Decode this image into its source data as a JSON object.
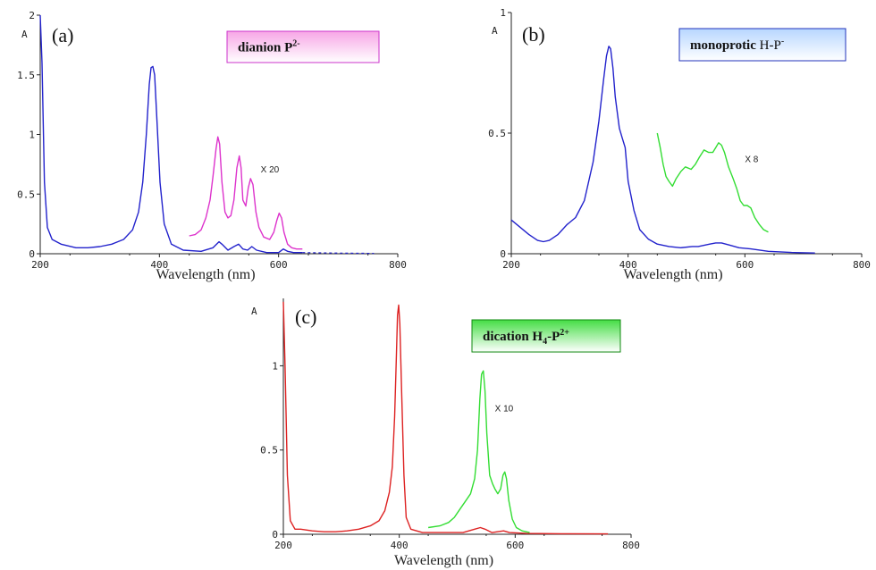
{
  "chart_data": [
    {
      "id": "a",
      "type": "line",
      "panel_label": "(a)",
      "ylabel": "A",
      "xlabel": "Wavelength (nm)",
      "xlim": [
        200,
        800
      ],
      "ylim": [
        0,
        2
      ],
      "xticks": [
        "200",
        "400",
        "600",
        "800"
      ],
      "xtick_values": [
        200,
        400,
        600,
        800
      ],
      "yticks": [
        "0",
        "0.5",
        "1",
        "1.5",
        "2"
      ],
      "ytick_values": [
        0,
        0.5,
        1,
        1.5,
        2
      ],
      "legend": {
        "bold": "dianion P",
        "sup": "2-",
        "rest": "",
        "rest_sup": "",
        "sub": "",
        "bold2": "",
        "bg": "#f7a6e6",
        "border": "#cc33cc"
      },
      "multiplier_label": "X 20",
      "multiplier_pos": {
        "x": 570,
        "y": 0.68
      },
      "series": [
        {
          "color": "#2222cc",
          "dashed_after": 640,
          "points": [
            [
              200,
              2.0
            ],
            [
              203,
              1.6
            ],
            [
              207,
              0.6
            ],
            [
              212,
              0.22
            ],
            [
              220,
              0.12
            ],
            [
              235,
              0.08
            ],
            [
              260,
              0.05
            ],
            [
              280,
              0.05
            ],
            [
              300,
              0.06
            ],
            [
              320,
              0.08
            ],
            [
              340,
              0.12
            ],
            [
              355,
              0.2
            ],
            [
              365,
              0.35
            ],
            [
              372,
              0.6
            ],
            [
              378,
              1.0
            ],
            [
              383,
              1.42
            ],
            [
              386,
              1.56
            ],
            [
              389,
              1.57
            ],
            [
              392,
              1.5
            ],
            [
              396,
              1.1
            ],
            [
              401,
              0.6
            ],
            [
              408,
              0.25
            ],
            [
              420,
              0.08
            ],
            [
              440,
              0.03
            ],
            [
              470,
              0.02
            ],
            [
              490,
              0.05
            ],
            [
              500,
              0.1
            ],
            [
              505,
              0.08
            ],
            [
              515,
              0.03
            ],
            [
              525,
              0.06
            ],
            [
              533,
              0.08
            ],
            [
              540,
              0.04
            ],
            [
              548,
              0.03
            ],
            [
              555,
              0.06
            ],
            [
              563,
              0.03
            ],
            [
              580,
              0.01
            ],
            [
              600,
              0.01
            ],
            [
              608,
              0.04
            ],
            [
              615,
              0.02
            ],
            [
              625,
              0.01
            ],
            [
              640,
              0.01
            ],
            [
              700,
              0.005
            ],
            [
              760,
              0.003
            ]
          ]
        },
        {
          "color": "#dd33cc",
          "points": [
            [
              450,
              0.15
            ],
            [
              460,
              0.16
            ],
            [
              470,
              0.2
            ],
            [
              478,
              0.3
            ],
            [
              485,
              0.45
            ],
            [
              490,
              0.65
            ],
            [
              495,
              0.88
            ],
            [
              498,
              0.98
            ],
            [
              501,
              0.92
            ],
            [
              505,
              0.6
            ],
            [
              510,
              0.35
            ],
            [
              515,
              0.3
            ],
            [
              520,
              0.32
            ],
            [
              525,
              0.45
            ],
            [
              530,
              0.72
            ],
            [
              534,
              0.82
            ],
            [
              537,
              0.72
            ],
            [
              540,
              0.45
            ],
            [
              545,
              0.4
            ],
            [
              549,
              0.55
            ],
            [
              553,
              0.63
            ],
            [
              557,
              0.58
            ],
            [
              562,
              0.35
            ],
            [
              567,
              0.22
            ],
            [
              575,
              0.14
            ],
            [
              585,
              0.12
            ],
            [
              592,
              0.18
            ],
            [
              597,
              0.28
            ],
            [
              601,
              0.34
            ],
            [
              605,
              0.3
            ],
            [
              609,
              0.18
            ],
            [
              615,
              0.08
            ],
            [
              622,
              0.05
            ],
            [
              630,
              0.04
            ],
            [
              640,
              0.04
            ]
          ]
        }
      ]
    },
    {
      "id": "b",
      "type": "line",
      "panel_label": "(b)",
      "ylabel": "A",
      "xlabel": "Wavelength (nm)",
      "xlim": [
        200,
        800
      ],
      "ylim": [
        0,
        1
      ],
      "xticks": [
        "200",
        "400",
        "600",
        "800"
      ],
      "xtick_values": [
        200,
        400,
        600,
        800
      ],
      "yticks": [
        "0",
        "0.5",
        "1"
      ],
      "ytick_values": [
        0,
        0.5,
        1
      ],
      "legend": {
        "bold": "monoprotic",
        "sup": "",
        "rest": " H-P",
        "rest_sup": "-",
        "sub": "",
        "bold2": "",
        "bg": "#b7d6ff",
        "border": "#2233bb"
      },
      "multiplier_label": "X 8",
      "multiplier_pos": {
        "x": 600,
        "y": 0.38
      },
      "series": [
        {
          "color": "#2222cc",
          "points": [
            [
              200,
              0.14
            ],
            [
              215,
              0.11
            ],
            [
              230,
              0.08
            ],
            [
              245,
              0.055
            ],
            [
              255,
              0.05
            ],
            [
              265,
              0.055
            ],
            [
              280,
              0.08
            ],
            [
              295,
              0.12
            ],
            [
              310,
              0.15
            ],
            [
              325,
              0.22
            ],
            [
              340,
              0.38
            ],
            [
              350,
              0.55
            ],
            [
              358,
              0.72
            ],
            [
              363,
              0.82
            ],
            [
              367,
              0.86
            ],
            [
              370,
              0.85
            ],
            [
              374,
              0.77
            ],
            [
              378,
              0.65
            ],
            [
              385,
              0.52
            ],
            [
              390,
              0.48
            ],
            [
              395,
              0.44
            ],
            [
              400,
              0.3
            ],
            [
              410,
              0.18
            ],
            [
              420,
              0.1
            ],
            [
              435,
              0.06
            ],
            [
              450,
              0.04
            ],
            [
              470,
              0.03
            ],
            [
              490,
              0.025
            ],
            [
              510,
              0.03
            ],
            [
              520,
              0.03
            ],
            [
              530,
              0.035
            ],
            [
              540,
              0.04
            ],
            [
              550,
              0.045
            ],
            [
              560,
              0.045
            ],
            [
              575,
              0.035
            ],
            [
              590,
              0.025
            ],
            [
              610,
              0.02
            ],
            [
              640,
              0.01
            ],
            [
              680,
              0.005
            ],
            [
              720,
              0.003
            ]
          ]
        },
        {
          "color": "#33dd33",
          "points": [
            [
              450,
              0.5
            ],
            [
              455,
              0.44
            ],
            [
              460,
              0.37
            ],
            [
              465,
              0.32
            ],
            [
              470,
              0.3
            ],
            [
              476,
              0.28
            ],
            [
              482,
              0.31
            ],
            [
              490,
              0.34
            ],
            [
              498,
              0.36
            ],
            [
              508,
              0.35
            ],
            [
              515,
              0.37
            ],
            [
              522,
              0.4
            ],
            [
              530,
              0.43
            ],
            [
              538,
              0.42
            ],
            [
              545,
              0.42
            ],
            [
              550,
              0.44
            ],
            [
              555,
              0.46
            ],
            [
              560,
              0.45
            ],
            [
              565,
              0.42
            ],
            [
              572,
              0.36
            ],
            [
              580,
              0.31
            ],
            [
              586,
              0.27
            ],
            [
              592,
              0.22
            ],
            [
              598,
              0.2
            ],
            [
              604,
              0.2
            ],
            [
              610,
              0.19
            ],
            [
              617,
              0.15
            ],
            [
              625,
              0.12
            ],
            [
              632,
              0.1
            ],
            [
              640,
              0.09
            ]
          ]
        }
      ]
    },
    {
      "id": "c",
      "type": "line",
      "panel_label": "(c)",
      "ylabel": "A",
      "xlabel": "Wavelength (nm)",
      "xlim": [
        200,
        800
      ],
      "ylim": [
        0,
        1.4
      ],
      "xticks": [
        "200",
        "400",
        "600",
        "800"
      ],
      "xtick_values": [
        200,
        400,
        600,
        800
      ],
      "yticks": [
        "0",
        "0.5",
        "1"
      ],
      "ytick_values": [
        0,
        0.5,
        1
      ],
      "legend": {
        "bold": "dication H",
        "sup": "",
        "rest": "",
        "rest_sup": "",
        "sub": "4",
        "bold2": "-P",
        "bold2_sup": "2+",
        "bg": "#44dd44",
        "border": "#118811"
      },
      "multiplier_label": "X 10",
      "multiplier_pos": {
        "x": 565,
        "y": 0.73
      },
      "series": [
        {
          "color": "#dd2222",
          "points": [
            [
              200,
              1.38
            ],
            [
              203,
              1.0
            ],
            [
              207,
              0.35
            ],
            [
              212,
              0.08
            ],
            [
              220,
              0.03
            ],
            [
              230,
              0.03
            ],
            [
              250,
              0.02
            ],
            [
              270,
              0.015
            ],
            [
              290,
              0.015
            ],
            [
              310,
              0.02
            ],
            [
              330,
              0.03
            ],
            [
              350,
              0.05
            ],
            [
              365,
              0.08
            ],
            [
              375,
              0.14
            ],
            [
              383,
              0.25
            ],
            [
              388,
              0.4
            ],
            [
              392,
              0.7
            ],
            [
              395,
              1.05
            ],
            [
              397,
              1.3
            ],
            [
              399,
              1.36
            ],
            [
              401,
              1.25
            ],
            [
              404,
              0.85
            ],
            [
              408,
              0.35
            ],
            [
              412,
              0.1
            ],
            [
              420,
              0.03
            ],
            [
              440,
              0.01
            ],
            [
              480,
              0.01
            ],
            [
              510,
              0.01
            ],
            [
              530,
              0.03
            ],
            [
              540,
              0.04
            ],
            [
              548,
              0.03
            ],
            [
              560,
              0.01
            ],
            [
              580,
              0.02
            ],
            [
              590,
              0.01
            ],
            [
              620,
              0.005
            ],
            [
              680,
              0.003
            ],
            [
              760,
              0.002
            ]
          ]
        },
        {
          "color": "#33dd33",
          "points": [
            [
              450,
              0.04
            ],
            [
              470,
              0.05
            ],
            [
              485,
              0.07
            ],
            [
              495,
              0.1
            ],
            [
              505,
              0.15
            ],
            [
              515,
              0.2
            ],
            [
              523,
              0.24
            ],
            [
              530,
              0.33
            ],
            [
              535,
              0.5
            ],
            [
              539,
              0.8
            ],
            [
              542,
              0.95
            ],
            [
              545,
              0.97
            ],
            [
              548,
              0.85
            ],
            [
              551,
              0.6
            ],
            [
              556,
              0.35
            ],
            [
              561,
              0.3
            ],
            [
              565,
              0.27
            ],
            [
              570,
              0.24
            ],
            [
              575,
              0.27
            ],
            [
              579,
              0.35
            ],
            [
              582,
              0.37
            ],
            [
              585,
              0.33
            ],
            [
              589,
              0.2
            ],
            [
              595,
              0.09
            ],
            [
              602,
              0.04
            ],
            [
              612,
              0.02
            ],
            [
              625,
              0.01
            ]
          ]
        }
      ]
    }
  ]
}
